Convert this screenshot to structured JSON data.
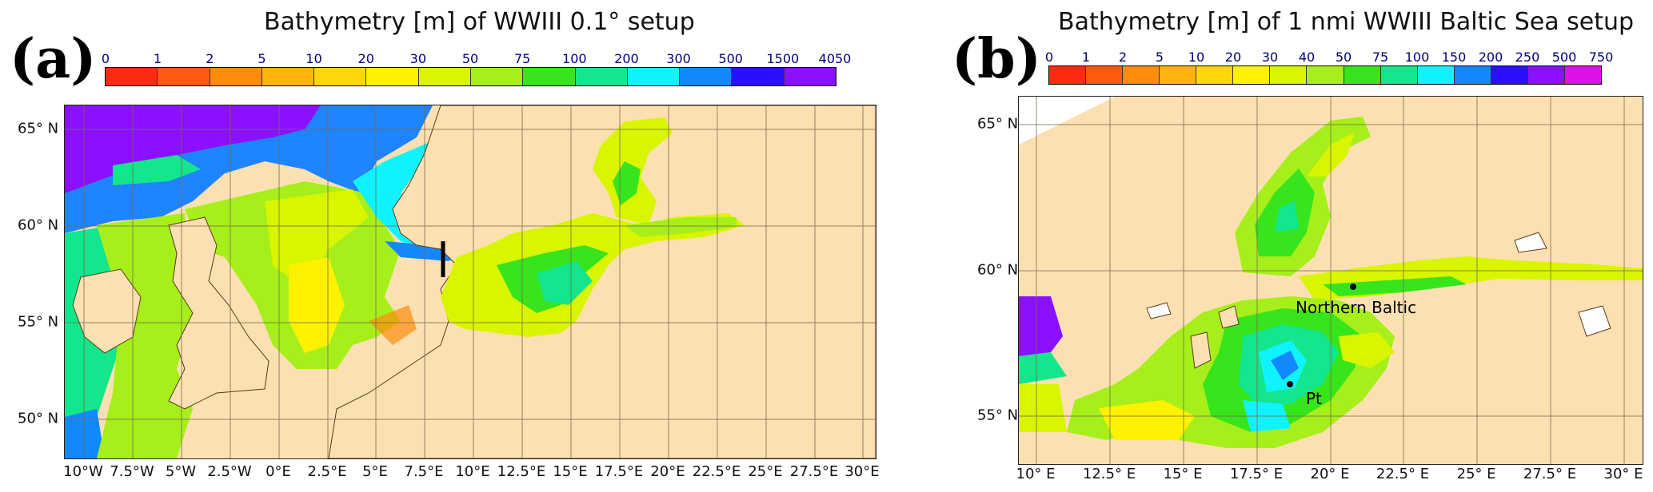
{
  "panel_a": {
    "letter": "(a)",
    "title": "Bathymetry [m] of WWIII 0.1° setup",
    "colorbar": {
      "ticks": [
        "0",
        "1",
        "2",
        "5",
        "10",
        "20",
        "30",
        "50",
        "75",
        "100",
        "200",
        "300",
        "500",
        "1500",
        "4050"
      ],
      "colors": [
        "#ff2a12",
        "#ff5a10",
        "#ff8c0e",
        "#ffb30c",
        "#ffd609",
        "#fff200",
        "#d9f500",
        "#a6ef1a",
        "#38e41c",
        "#13e68c",
        "#10f3ff",
        "#1288ff",
        "#2a10ff",
        "#8a10ff"
      ]
    },
    "lat_labels": [
      "65° N",
      "60° N",
      "55° N",
      "50° N"
    ],
    "lon_labels": [
      "10°W",
      "7.5°W",
      "5°W",
      "2.5°W",
      "0°E",
      "2.5°E",
      "5°E",
      "7.5°E",
      "10°E",
      "12.5°E",
      "15°E",
      "17.5°E",
      "20°E",
      "22.5°E",
      "25°E",
      "27.5°E",
      "30°E"
    ]
  },
  "panel_b": {
    "letter": "(b)",
    "title": "Bathymetry [m] of 1 nmi WWIII Baltic Sea setup",
    "colorbar": {
      "ticks": [
        "0",
        "1",
        "2",
        "5",
        "10",
        "20",
        "30",
        "40",
        "50",
        "75",
        "100",
        "150",
        "200",
        "250",
        "500",
        "750"
      ],
      "colors": [
        "#ff2a12",
        "#ff5a10",
        "#ff8c0e",
        "#ffb30c",
        "#ffd609",
        "#fff200",
        "#d9f500",
        "#a6ef1a",
        "#38e41c",
        "#13e68c",
        "#10f3ff",
        "#1288ff",
        "#2a10ff",
        "#8a10ff",
        "#e010e8"
      ]
    },
    "lat_labels": [
      "65° N",
      "60° N",
      "55° N"
    ],
    "lon_labels": [
      "10° E",
      "12.5° E",
      "15° E",
      "17.5° E",
      "20° E",
      "22.5° E",
      "25° E",
      "27.5° E",
      "30° E"
    ],
    "stations": [
      {
        "name": "Northern Baltic"
      },
      {
        "name": "Pt"
      }
    ]
  },
  "colors": {
    "land": "#fce0b1",
    "grid": "#8a7a5a",
    "border": "#9a9a9a"
  }
}
